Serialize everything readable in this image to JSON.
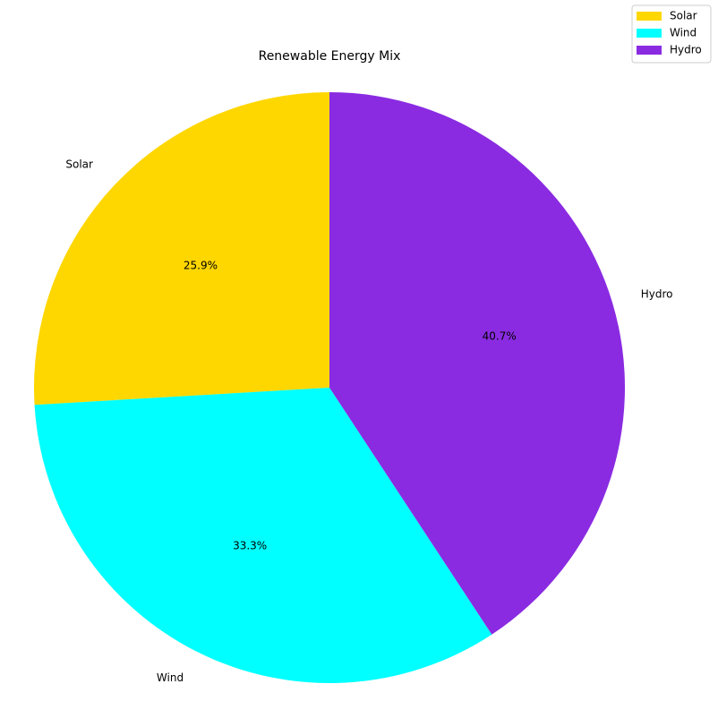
{
  "chart_data": {
    "type": "pie",
    "title": "Renewable Energy Mix",
    "categories": [
      "Solar",
      "Wind",
      "Hydro"
    ],
    "values": [
      25.9,
      33.3,
      40.7
    ],
    "percent_labels": [
      "25.9%",
      "33.3%",
      "40.7%"
    ],
    "colors": [
      "#FFD700",
      "#00FFFF",
      "#8A2BE2"
    ],
    "start_angle_deg": 90,
    "direction": "counterclockwise",
    "legend": {
      "placement": "top-right",
      "entries": [
        "Solar",
        "Wind",
        "Hydro"
      ]
    }
  }
}
